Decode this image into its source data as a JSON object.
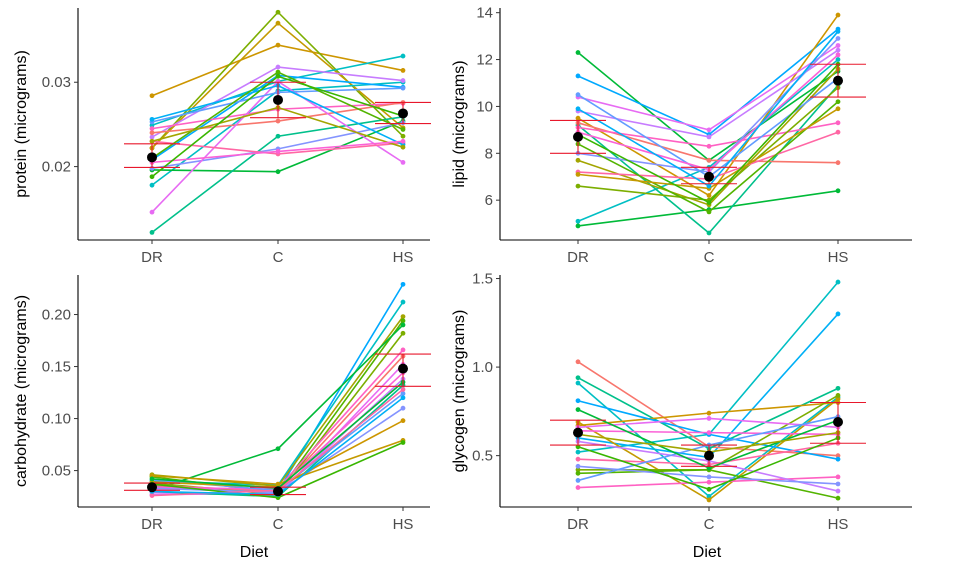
{
  "figure": {
    "xlabel": "Diet"
  },
  "chart_data": [
    {
      "id": "protein",
      "type": "line",
      "categories": [
        "DR",
        "C",
        "HS"
      ],
      "ylabel": "protein (micrograms)",
      "ylim": [
        0.0113,
        0.0388
      ],
      "yticks": [
        0.02,
        0.03
      ],
      "ytick_labels": [
        "0.02",
        "0.03"
      ],
      "mean": [
        0.0211,
        0.0279,
        0.0263
      ],
      "error": [
        [
          0.0199,
          0.0227
        ],
        [
          0.0258,
          0.03
        ],
        [
          0.0251,
          0.0276
        ]
      ],
      "series": [
        {
          "color": "#cd9600",
          "values": [
            0.0284,
            0.0344,
            0.0314
          ]
        },
        {
          "color": "#7cae00",
          "values": [
            0.0222,
            0.0383,
            0.0236
          ]
        },
        {
          "color": "#c49a00",
          "values": [
            0.0222,
            0.037,
            0.0246
          ]
        },
        {
          "color": "#00bfc4",
          "values": [
            0.0249,
            0.0301,
            0.0331
          ]
        },
        {
          "color": "#00bfc4",
          "values": [
            0.0178,
            0.029,
            0.03
          ]
        },
        {
          "color": "#00a9ff",
          "values": [
            0.0208,
            0.0308,
            0.0294
          ]
        },
        {
          "color": "#c77cff",
          "values": [
            0.0235,
            0.0318,
            0.0302
          ]
        },
        {
          "color": "#ff61c3",
          "values": [
            0.0245,
            0.0268,
            0.0275
          ]
        },
        {
          "color": "#f8766d",
          "values": [
            0.024,
            0.0254,
            0.0276
          ]
        },
        {
          "color": "#00ba38",
          "values": [
            0.0196,
            0.0194,
            0.0254
          ]
        },
        {
          "color": "#00c08b",
          "values": [
            0.0122,
            0.0236,
            0.0259
          ]
        },
        {
          "color": "#8494ff",
          "values": [
            0.0198,
            0.0221,
            0.0252
          ]
        },
        {
          "color": "#e76bf3",
          "values": [
            0.0146,
            0.0301,
            0.0205
          ]
        },
        {
          "color": "#ff67a4",
          "values": [
            0.023,
            0.0215,
            0.0228
          ]
        },
        {
          "color": "#619cff",
          "values": [
            0.0253,
            0.0288,
            0.0293
          ]
        },
        {
          "color": "#00b0f6",
          "values": [
            0.0256,
            0.0296,
            0.0226
          ]
        },
        {
          "color": "#53b400",
          "values": [
            0.021,
            0.0312,
            0.0244
          ]
        },
        {
          "color": "#a3a500",
          "values": [
            0.023,
            0.027,
            0.0223
          ]
        },
        {
          "color": "#fb61d7",
          "values": [
            0.0205,
            0.0218,
            0.023
          ]
        },
        {
          "color": "#39b600",
          "values": [
            0.0188,
            0.0307,
            0.026
          ]
        }
      ]
    },
    {
      "id": "lipid",
      "type": "line",
      "categories": [
        "DR",
        "C",
        "HS"
      ],
      "ylabel": "lipid (micrograms)",
      "ylim": [
        4.3,
        14.2
      ],
      "yticks": [
        6,
        8,
        10,
        12,
        14
      ],
      "ytick_labels": [
        "6",
        "8",
        "10",
        "12",
        "14"
      ],
      "mean": [
        8.7,
        7.0,
        11.1
      ],
      "error": [
        [
          8.0,
          9.4
        ],
        [
          6.7,
          7.4
        ],
        [
          10.4,
          11.8
        ]
      ],
      "series": [
        {
          "color": "#00ba38",
          "values": [
            12.3,
            7.7,
            11.5
          ]
        },
        {
          "color": "#00a9ff",
          "values": [
            11.3,
            8.8,
            13.3
          ]
        },
        {
          "color": "#00bfc4",
          "values": [
            5.1,
            7.4,
            12.0
          ]
        },
        {
          "color": "#00ba38",
          "values": [
            4.9,
            5.6,
            6.4
          ]
        },
        {
          "color": "#00c08b",
          "values": [
            9.2,
            4.6,
            10.9
          ]
        },
        {
          "color": "#cd9600",
          "values": [
            9.5,
            6.2,
            13.9
          ]
        },
        {
          "color": "#f8766d",
          "values": [
            9.3,
            7.7,
            7.6
          ]
        },
        {
          "color": "#e76bf3",
          "values": [
            10.4,
            9.0,
            12.6
          ]
        },
        {
          "color": "#ff61c3",
          "values": [
            9.1,
            8.3,
            9.3
          ]
        },
        {
          "color": "#c77cff",
          "values": [
            9.8,
            8.7,
            12.4
          ]
        },
        {
          "color": "#a3a500",
          "values": [
            7.7,
            5.8,
            11.6
          ]
        },
        {
          "color": "#7cae00",
          "values": [
            6.6,
            6.0,
            10.8
          ]
        },
        {
          "color": "#8494ff",
          "values": [
            8.0,
            7.2,
            12.9
          ]
        },
        {
          "color": "#ff67a4",
          "values": [
            7.2,
            6.9,
            8.9
          ]
        },
        {
          "color": "#619cff",
          "values": [
            10.5,
            7.0,
            11.2
          ]
        },
        {
          "color": "#53b400",
          "values": [
            8.4,
            5.5,
            10.2
          ]
        },
        {
          "color": "#c49a00",
          "values": [
            7.1,
            6.5,
            9.9
          ]
        },
        {
          "color": "#fb61d7",
          "values": [
            8.9,
            7.3,
            12.2
          ]
        },
        {
          "color": "#00b0f6",
          "values": [
            9.9,
            6.6,
            13.2
          ]
        },
        {
          "color": "#39b600",
          "values": [
            8.8,
            5.9,
            11.8
          ]
        }
      ]
    },
    {
      "id": "carbohydrate",
      "type": "line",
      "categories": [
        "DR",
        "C",
        "HS"
      ],
      "ylabel": "carbohydrate (micrograms)",
      "ylim": [
        0.015,
        0.238
      ],
      "yticks": [
        0.05,
        0.1,
        0.15,
        0.2
      ],
      "ytick_labels": [
        "0.05",
        "0.10",
        "0.15",
        "0.20"
      ],
      "mean": [
        0.034,
        0.03,
        0.148
      ],
      "error": [
        [
          0.031,
          0.038
        ],
        [
          0.027,
          0.034
        ],
        [
          0.131,
          0.162
        ]
      ],
      "series": [
        {
          "color": "#00a9ff",
          "values": [
            0.035,
            0.03,
            0.229
          ]
        },
        {
          "color": "#00bfc4",
          "values": [
            0.04,
            0.036,
            0.212
          ]
        },
        {
          "color": "#a3a500",
          "values": [
            0.046,
            0.035,
            0.198
          ]
        },
        {
          "color": "#53b400",
          "values": [
            0.044,
            0.029,
            0.194
          ]
        },
        {
          "color": "#00ba38",
          "values": [
            0.031,
            0.071,
            0.19
          ]
        },
        {
          "color": "#7cae00",
          "values": [
            0.038,
            0.027,
            0.182
          ]
        },
        {
          "color": "#ff61c3",
          "values": [
            0.032,
            0.033,
            0.166
          ]
        },
        {
          "color": "#f8766d",
          "values": [
            0.036,
            0.03,
            0.16
          ]
        },
        {
          "color": "#e76bf3",
          "values": [
            0.029,
            0.026,
            0.152
          ]
        },
        {
          "color": "#fb61d7",
          "values": [
            0.034,
            0.032,
            0.144
          ]
        },
        {
          "color": "#c77cff",
          "values": [
            0.027,
            0.028,
            0.138
          ]
        },
        {
          "color": "#00c08b",
          "values": [
            0.03,
            0.025,
            0.132
          ]
        },
        {
          "color": "#619cff",
          "values": [
            0.041,
            0.031,
            0.124
          ]
        },
        {
          "color": "#8494ff",
          "values": [
            0.033,
            0.029,
            0.11
          ]
        },
        {
          "color": "#cd9600",
          "values": [
            0.039,
            0.034,
            0.098
          ]
        },
        {
          "color": "#c49a00",
          "values": [
            0.045,
            0.037,
            0.079
          ]
        },
        {
          "color": "#39b600",
          "values": [
            0.037,
            0.024,
            0.077
          ]
        },
        {
          "color": "#ff67a4",
          "values": [
            0.026,
            0.031,
            0.128
          ]
        },
        {
          "color": "#00b0f6",
          "values": [
            0.03,
            0.027,
            0.12
          ]
        },
        {
          "color": "#00ba38",
          "values": [
            0.042,
            0.033,
            0.135
          ]
        }
      ]
    },
    {
      "id": "glycogen",
      "type": "line",
      "categories": [
        "DR",
        "C",
        "HS"
      ],
      "ylabel": "glycogen (micrograms)",
      "ylim": [
        0.21,
        1.52
      ],
      "yticks": [
        0.5,
        1.0,
        1.5
      ],
      "ytick_labels": [
        "0.5",
        "1.0",
        "1.5"
      ],
      "mean": [
        0.63,
        0.5,
        0.69
      ],
      "error": [
        [
          0.56,
          0.7
        ],
        [
          0.44,
          0.56
        ],
        [
          0.57,
          0.8
        ]
      ],
      "series": [
        {
          "color": "#00bfc4",
          "values": [
            0.52,
            0.62,
            1.48
          ]
        },
        {
          "color": "#00b0f6",
          "values": [
            0.6,
            0.49,
            1.3
          ]
        },
        {
          "color": "#f8766d",
          "values": [
            1.03,
            0.55,
            0.5
          ]
        },
        {
          "color": "#00c08b",
          "values": [
            0.94,
            0.54,
            0.88
          ]
        },
        {
          "color": "#00bfc4",
          "values": [
            0.91,
            0.27,
            0.83
          ]
        },
        {
          "color": "#cd9600",
          "values": [
            0.67,
            0.74,
            0.8
          ]
        },
        {
          "color": "#c49a00",
          "values": [
            0.69,
            0.25,
            0.82
          ]
        },
        {
          "color": "#00a9ff",
          "values": [
            0.81,
            0.62,
            0.48
          ]
        },
        {
          "color": "#7cae00",
          "values": [
            0.42,
            0.42,
            0.84
          ]
        },
        {
          "color": "#53b400",
          "values": [
            0.4,
            0.42,
            0.26
          ]
        },
        {
          "color": "#ff61c3",
          "values": [
            0.32,
            0.35,
            0.38
          ]
        },
        {
          "color": "#e76bf3",
          "values": [
            0.66,
            0.71,
            0.66
          ]
        },
        {
          "color": "#c77cff",
          "values": [
            0.58,
            0.47,
            0.3
          ]
        },
        {
          "color": "#8494ff",
          "values": [
            0.44,
            0.38,
            0.34
          ]
        },
        {
          "color": "#fb61d7",
          "values": [
            0.64,
            0.63,
            0.62
          ]
        },
        {
          "color": "#ff67a4",
          "values": [
            0.48,
            0.45,
            0.57
          ]
        },
        {
          "color": "#619cff",
          "values": [
            0.36,
            0.56,
            0.72
          ]
        },
        {
          "color": "#00ba38",
          "values": [
            0.76,
            0.43,
            0.7
          ]
        },
        {
          "color": "#a3a500",
          "values": [
            0.62,
            0.52,
            0.63
          ]
        },
        {
          "color": "#39b600",
          "values": [
            0.55,
            0.31,
            0.6
          ]
        }
      ]
    }
  ]
}
